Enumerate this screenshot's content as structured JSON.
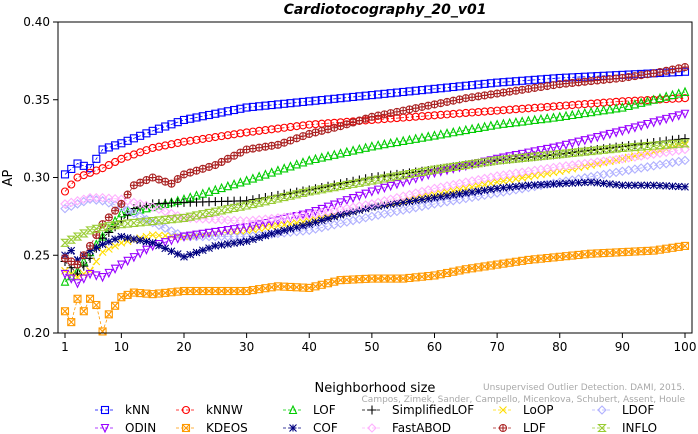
{
  "chart_data": {
    "type": "line",
    "title": "Cardiotocography_20_v01",
    "xlabel": "Neighborhood size",
    "ylabel": "AP",
    "xlim": [
      1,
      100
    ],
    "ylim": [
      0.2,
      0.4
    ],
    "xticks": [
      1,
      10,
      20,
      30,
      40,
      50,
      60,
      70,
      80,
      90,
      100
    ],
    "yticks": [
      0.2,
      0.25,
      0.3,
      0.35,
      0.4
    ],
    "ytick_labels": [
      "0.20",
      "0.25",
      "0.30",
      "0.35",
      "0.40"
    ],
    "grid": false,
    "legend_position": "bottom",
    "credit_lines": [
      "Unsupervised Outlier Detection. DAMI, 2015.",
      "Campos, Zimek, Sander, Campello, Micenkova, Schubert, Assent, Houle"
    ],
    "series": [
      {
        "name": "kNN",
        "color": "#0000ff",
        "marker": "square",
        "x": [
          1,
          3,
          5,
          7,
          10,
          15,
          20,
          30,
          40,
          50,
          60,
          70,
          80,
          90,
          100
        ],
        "y": [
          0.302,
          0.309,
          0.306,
          0.318,
          0.322,
          0.33,
          0.337,
          0.345,
          0.349,
          0.353,
          0.357,
          0.361,
          0.364,
          0.366,
          0.368
        ]
      },
      {
        "name": "kNNW",
        "color": "#ff0000",
        "marker": "circle",
        "x": [
          1,
          3,
          5,
          7,
          10,
          15,
          20,
          30,
          40,
          50,
          60,
          70,
          80,
          90,
          100
        ],
        "y": [
          0.291,
          0.3,
          0.303,
          0.306,
          0.312,
          0.319,
          0.323,
          0.329,
          0.334,
          0.337,
          0.34,
          0.343,
          0.346,
          0.349,
          0.351
        ]
      },
      {
        "name": "LOF",
        "color": "#00cc00",
        "marker": "triangle-up",
        "x": [
          1,
          3,
          5,
          7,
          10,
          15,
          20,
          30,
          40,
          50,
          60,
          70,
          80,
          90,
          100
        ],
        "y": [
          0.233,
          0.24,
          0.252,
          0.262,
          0.277,
          0.281,
          0.286,
          0.298,
          0.311,
          0.32,
          0.327,
          0.334,
          0.339,
          0.345,
          0.355
        ]
      },
      {
        "name": "SimplifiedLOF",
        "color": "#000000",
        "marker": "plus",
        "x": [
          1,
          3,
          5,
          7,
          10,
          12,
          15,
          20,
          30,
          40,
          50,
          60,
          70,
          80,
          90,
          100
        ],
        "y": [
          0.246,
          0.238,
          0.248,
          0.261,
          0.272,
          0.28,
          0.283,
          0.284,
          0.285,
          0.292,
          0.3,
          0.305,
          0.311,
          0.315,
          0.32,
          0.325
        ]
      },
      {
        "name": "LoOP",
        "color": "#ffdd00",
        "marker": "x",
        "x": [
          1,
          3,
          5,
          7,
          10,
          15,
          20,
          30,
          40,
          50,
          60,
          70,
          80,
          90,
          100
        ],
        "y": [
          0.24,
          0.236,
          0.24,
          0.252,
          0.258,
          0.263,
          0.262,
          0.266,
          0.272,
          0.281,
          0.289,
          0.297,
          0.304,
          0.312,
          0.321
        ]
      },
      {
        "name": "LDOF",
        "color": "#b0b0ff",
        "marker": "diamond",
        "x": [
          1,
          3,
          5,
          7,
          10,
          15,
          20,
          30,
          40,
          50,
          60,
          70,
          80,
          90,
          100
        ],
        "y": [
          0.28,
          0.283,
          0.286,
          0.285,
          0.281,
          0.271,
          0.262,
          0.262,
          0.266,
          0.275,
          0.283,
          0.29,
          0.297,
          0.304,
          0.311
        ]
      },
      {
        "name": "ODIN",
        "color": "#9900ff",
        "marker": "triangle-down",
        "x": [
          1,
          3,
          5,
          7,
          10,
          15,
          20,
          30,
          40,
          50,
          60,
          70,
          80,
          90,
          100
        ],
        "y": [
          0.238,
          0.232,
          0.238,
          0.236,
          0.244,
          0.256,
          0.262,
          0.268,
          0.277,
          0.291,
          0.303,
          0.312,
          0.32,
          0.33,
          0.341
        ]
      },
      {
        "name": "KDEOS",
        "color": "#ff9900",
        "marker": "square-x",
        "x": [
          1,
          2,
          3,
          4,
          5,
          6,
          7,
          8,
          10,
          12,
          15,
          20,
          25,
          30,
          35,
          40,
          45,
          50,
          55,
          60,
          65,
          70,
          75,
          80,
          85,
          90,
          95,
          100
        ],
        "y": [
          0.214,
          0.207,
          0.222,
          0.214,
          0.222,
          0.218,
          0.201,
          0.212,
          0.223,
          0.226,
          0.225,
          0.227,
          0.227,
          0.227,
          0.23,
          0.229,
          0.234,
          0.235,
          0.235,
          0.237,
          0.241,
          0.244,
          0.247,
          0.249,
          0.251,
          0.252,
          0.253,
          0.256
        ]
      },
      {
        "name": "COF",
        "color": "#000080",
        "marker": "asterisk",
        "x": [
          1,
          2,
          3,
          5,
          7,
          10,
          15,
          20,
          25,
          30,
          35,
          40,
          45,
          50,
          55,
          60,
          65,
          70,
          75,
          80,
          85,
          90,
          95,
          100
        ],
        "y": [
          0.25,
          0.253,
          0.247,
          0.253,
          0.257,
          0.262,
          0.258,
          0.249,
          0.256,
          0.259,
          0.265,
          0.27,
          0.276,
          0.281,
          0.284,
          0.287,
          0.29,
          0.293,
          0.295,
          0.296,
          0.297,
          0.295,
          0.295,
          0.294
        ]
      },
      {
        "name": "FastABOD",
        "color": "#ffb0ff",
        "marker": "diamond",
        "x": [
          1,
          3,
          5,
          7,
          10,
          15,
          20,
          30,
          40,
          50,
          60,
          70,
          80,
          90,
          100
        ],
        "y": [
          0.283,
          0.285,
          0.287,
          0.287,
          0.286,
          0.281,
          0.274,
          0.272,
          0.276,
          0.283,
          0.293,
          0.301,
          0.307,
          0.312,
          0.318
        ]
      },
      {
        "name": "LDF",
        "color": "#aa2222",
        "marker": "circle-plus",
        "x": [
          1,
          3,
          5,
          7,
          10,
          12,
          15,
          18,
          20,
          25,
          30,
          35,
          40,
          45,
          50,
          55,
          60,
          65,
          70,
          75,
          80,
          85,
          90,
          95,
          100
        ],
        "y": [
          0.248,
          0.244,
          0.256,
          0.27,
          0.283,
          0.295,
          0.3,
          0.296,
          0.302,
          0.308,
          0.318,
          0.321,
          0.328,
          0.333,
          0.339,
          0.343,
          0.347,
          0.351,
          0.354,
          0.357,
          0.36,
          0.362,
          0.364,
          0.367,
          0.371
        ]
      },
      {
        "name": "INFLO",
        "color": "#99cc33",
        "marker": "hourglass",
        "x": [
          1,
          3,
          5,
          7,
          10,
          15,
          20,
          30,
          40,
          50,
          60,
          70,
          80,
          90,
          100
        ],
        "y": [
          0.258,
          0.262,
          0.266,
          0.268,
          0.27,
          0.272,
          0.274,
          0.282,
          0.291,
          0.298,
          0.305,
          0.311,
          0.315,
          0.319,
          0.322
        ]
      }
    ]
  }
}
